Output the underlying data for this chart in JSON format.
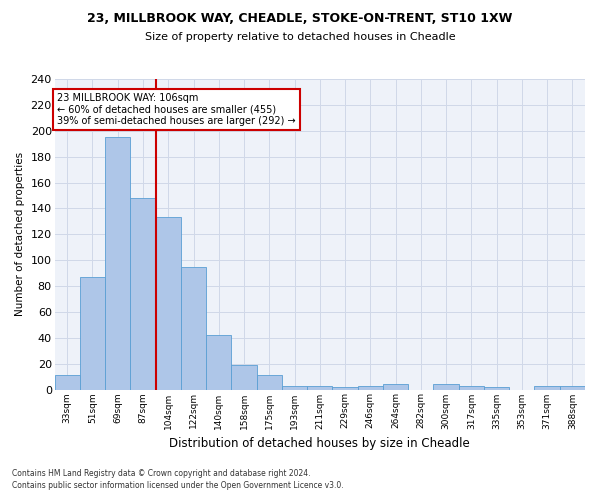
{
  "title1": "23, MILLBROOK WAY, CHEADLE, STOKE-ON-TRENT, ST10 1XW",
  "title2": "Size of property relative to detached houses in Cheadle",
  "xlabel": "Distribution of detached houses by size in Cheadle",
  "ylabel": "Number of detached properties",
  "categories": [
    "33sqm",
    "51sqm",
    "69sqm",
    "87sqm",
    "104sqm",
    "122sqm",
    "140sqm",
    "158sqm",
    "175sqm",
    "193sqm",
    "211sqm",
    "229sqm",
    "246sqm",
    "264sqm",
    "282sqm",
    "300sqm",
    "317sqm",
    "335sqm",
    "353sqm",
    "371sqm",
    "388sqm"
  ],
  "values": [
    11,
    87,
    195,
    148,
    133,
    95,
    42,
    19,
    11,
    3,
    3,
    2,
    3,
    4,
    0,
    4,
    3,
    2,
    0,
    3,
    3
  ],
  "bar_color": "#aec6e8",
  "bar_edge_color": "#5a9fd4",
  "vline_color": "#cc0000",
  "vline_x_index": 3.5,
  "ylim": [
    0,
    240
  ],
  "yticks": [
    0,
    20,
    40,
    60,
    80,
    100,
    120,
    140,
    160,
    180,
    200,
    220,
    240
  ],
  "annotation_line1": "23 MILLBROOK WAY: 106sqm",
  "annotation_line2": "← 60% of detached houses are smaller (455)",
  "annotation_line3": "39% of semi-detached houses are larger (292) →",
  "annotation_box_color": "#ffffff",
  "annotation_box_edge": "#cc0000",
  "footnote1": "Contains HM Land Registry data © Crown copyright and database right 2024.",
  "footnote2": "Contains public sector information licensed under the Open Government Licence v3.0.",
  "grid_color": "#d0d8e8",
  "bg_color": "#eef2f9"
}
